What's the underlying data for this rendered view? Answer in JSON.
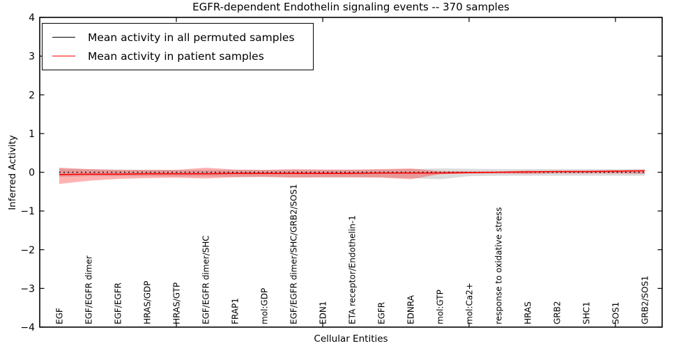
{
  "title": "EGFR-dependent Endothelin signaling events -- 370 samples",
  "legend": {
    "items": [
      {
        "label": "Mean activity in all permuted samples",
        "color": "#000000"
      },
      {
        "label": "Mean activity in patient samples",
        "color": "#ff0000"
      }
    ]
  },
  "axes": {
    "ylabel": "Inferred Activity",
    "xlabel": "Cellular Entities"
  },
  "colors": {
    "frame": "#000000",
    "permuted_line": "#000000",
    "patient_line": "#ff0000",
    "permuted_band": "rgba(110,110,110,0.25)",
    "patient_band": "rgba(255,0,0,0.30)"
  },
  "chart_data": {
    "type": "line",
    "title": "EGFR-dependent Endothelin signaling events -- 370 samples",
    "xlabel": "Cellular Entities",
    "ylabel": "Inferred Activity",
    "ylim": [
      -4,
      4
    ],
    "yticks": [
      4,
      3,
      2,
      1,
      0,
      -1,
      -2,
      -3,
      -4
    ],
    "xtick_positions": [
      5,
      10,
      15,
      20
    ],
    "grid": false,
    "legend_position": "upper left",
    "categories": [
      "EGF",
      "EGF/EGFR dimer",
      "EGF/EGFR",
      "HRAS/GDP",
      "HRAS/GTP",
      "EGF/EGFR dimer/SHC",
      "FRAP1",
      "mol:GDP",
      "EGF/EGFR dimer/SHC/GRB2/SOS1",
      "EDN1",
      "ETA receptor/Endothelin-1",
      "EGFR",
      "EDNRA",
      "mol:GTP",
      "mol:Ca2+",
      "response to oxidative stress",
      "HRAS",
      "GRB2",
      "SHC1",
      "SOS1",
      "GRB2/SOS1"
    ],
    "series": [
      {
        "name": "Mean activity in all permuted samples",
        "color": "#000000",
        "style": "dotted",
        "values": [
          0,
          0,
          0,
          0,
          0,
          0,
          0,
          0,
          0,
          0,
          0,
          0,
          0,
          0,
          0,
          0,
          0,
          0,
          0,
          0,
          0
        ]
      },
      {
        "name": "Mean activity in patient samples",
        "color": "#ff0000",
        "style": "solid",
        "values": [
          -0.06,
          -0.05,
          -0.05,
          -0.04,
          -0.04,
          -0.04,
          -0.03,
          -0.03,
          -0.03,
          -0.03,
          -0.03,
          -0.02,
          -0.02,
          -0.02,
          -0.01,
          0.0,
          0.01,
          0.02,
          0.02,
          0.03,
          0.04
        ]
      }
    ],
    "bands": [
      {
        "name": "permuted-std-band",
        "color": "rgba(110,110,110,0.25)",
        "upper": [
          0.09,
          0.08,
          0.07,
          0.06,
          0.06,
          0.06,
          0.06,
          0.06,
          0.06,
          0.06,
          0.06,
          0.07,
          0.08,
          0.1,
          0.09,
          0.08,
          0.08,
          0.08,
          0.08,
          0.08,
          0.08
        ],
        "lower": [
          -0.12,
          -0.1,
          -0.1,
          -0.1,
          -0.11,
          -0.11,
          -0.12,
          -0.12,
          -0.13,
          -0.13,
          -0.13,
          -0.13,
          -0.15,
          -0.18,
          -0.1,
          -0.09,
          -0.09,
          -0.09,
          -0.09,
          -0.09,
          -0.09
        ]
      },
      {
        "name": "patient-std-band",
        "color": "rgba(255,0,0,0.30)",
        "upper": [
          0.12,
          0.08,
          0.06,
          0.06,
          0.06,
          0.12,
          0.07,
          0.06,
          0.08,
          0.07,
          0.07,
          0.08,
          0.1,
          0.03,
          0.02,
          0.02,
          0.04,
          0.03,
          0.03,
          0.03,
          0.05
        ],
        "lower": [
          -0.3,
          -0.22,
          -0.17,
          -0.15,
          -0.14,
          -0.16,
          -0.13,
          -0.12,
          -0.14,
          -0.13,
          -0.13,
          -0.14,
          -0.18,
          -0.05,
          -0.03,
          -0.03,
          -0.04,
          -0.03,
          -0.03,
          -0.03,
          -0.04
        ]
      }
    ]
  }
}
